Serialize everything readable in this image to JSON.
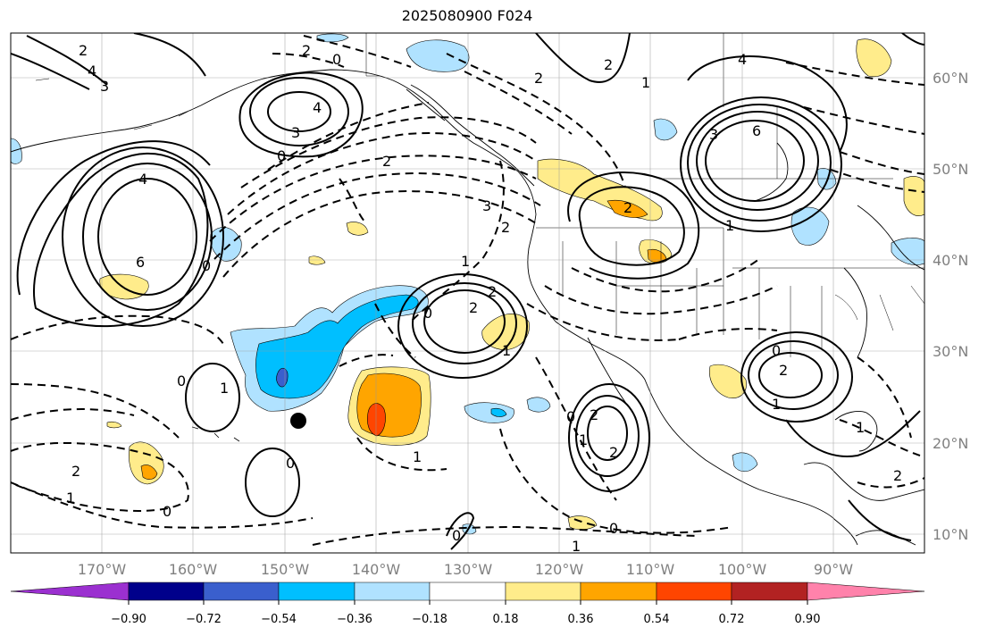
{
  "title": "2025080900 F024",
  "lat_labels": [
    "60°N",
    "50°N",
    "40°N",
    "30°N",
    "20°N",
    "10°N"
  ],
  "lon_labels": [
    "170°W",
    "160°W",
    "150°W",
    "140°W",
    "130°W",
    "120°W",
    "110°W",
    "100°W",
    "90°W"
  ],
  "colorbar": {
    "ticks": [
      "−0.90",
      "−0.72",
      "−0.54",
      "−0.36",
      "−0.18",
      "0.18",
      "0.36",
      "0.54",
      "0.72",
      "0.90"
    ],
    "colors": [
      "#9b30d0",
      "#00008b",
      "#3a5fcd",
      "#00bfff",
      "#b0e2ff",
      "#ffffff",
      "#ffec8b",
      "#ffa500",
      "#ff4500",
      "#b22222",
      "#ff82ab"
    ]
  },
  "contour_labels": [
    "2",
    "0",
    "4",
    "3",
    "0",
    "4",
    "6",
    "4",
    "2",
    "3",
    "2",
    "2",
    "1",
    "4",
    "6",
    "3",
    "1",
    "2",
    "2",
    "1",
    "3",
    "2",
    "2",
    "0",
    "1",
    "0",
    "2",
    "2",
    "2",
    "1",
    "0",
    "1",
    "0",
    "0",
    "1",
    "0",
    "1",
    "2",
    "2",
    "0",
    "2",
    "1",
    "0",
    "1",
    "1",
    "0"
  ],
  "marker": "storm-center"
}
